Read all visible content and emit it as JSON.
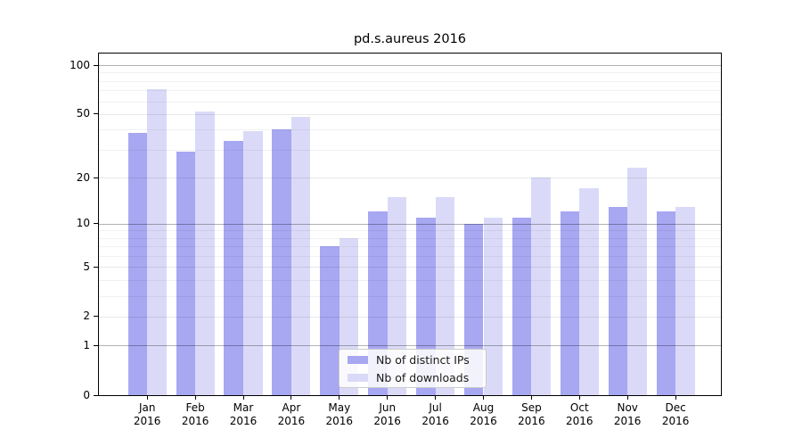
{
  "title": "pd.s.aureus 2016",
  "chart_data": {
    "type": "bar",
    "title": "pd.s.aureus 2016",
    "yscale": "symlog-ln(1+v)",
    "ylim": [
      0,
      118
    ],
    "grid": true,
    "legend_position": "lower center",
    "categories": [
      "Jan",
      "Feb",
      "Mar",
      "Apr",
      "May",
      "Jun",
      "Jul",
      "Aug",
      "Sep",
      "Oct",
      "Nov",
      "Dec"
    ],
    "year_label": "2016",
    "series": [
      {
        "name": "Nb of distinct IPs",
        "color": "#a7a7f2",
        "values": [
          38,
          29,
          34,
          40,
          7,
          12,
          11,
          10,
          11,
          12,
          13,
          12
        ]
      },
      {
        "name": "Nb of downloads",
        "color": "#dadaf8",
        "values": [
          71,
          52,
          39,
          48,
          8,
          15,
          15,
          11,
          20,
          17,
          23,
          13
        ]
      }
    ],
    "y_ticks": [
      0,
      1,
      2,
      5,
      10,
      20,
      50,
      100
    ],
    "y_gridlines_major": [
      1,
      10,
      100
    ],
    "y_gridlines_labeled_minor": [
      2,
      5,
      20,
      50
    ],
    "y_gridlines_minor": [
      3,
      4,
      6,
      7,
      8,
      9,
      30,
      40,
      60,
      70,
      80,
      90
    ]
  },
  "colors": {
    "bar_distinct_ips": "#a7a7f2",
    "bar_downloads": "#dadaf8",
    "grid_major": "rgba(0,0,0,0.30)",
    "grid_labeled_minor": "rgba(0,0,0,0.09)",
    "grid_minor": "rgba(0,0,0,0.055)",
    "axis": "#000000",
    "legend_border": "#cccccc"
  }
}
